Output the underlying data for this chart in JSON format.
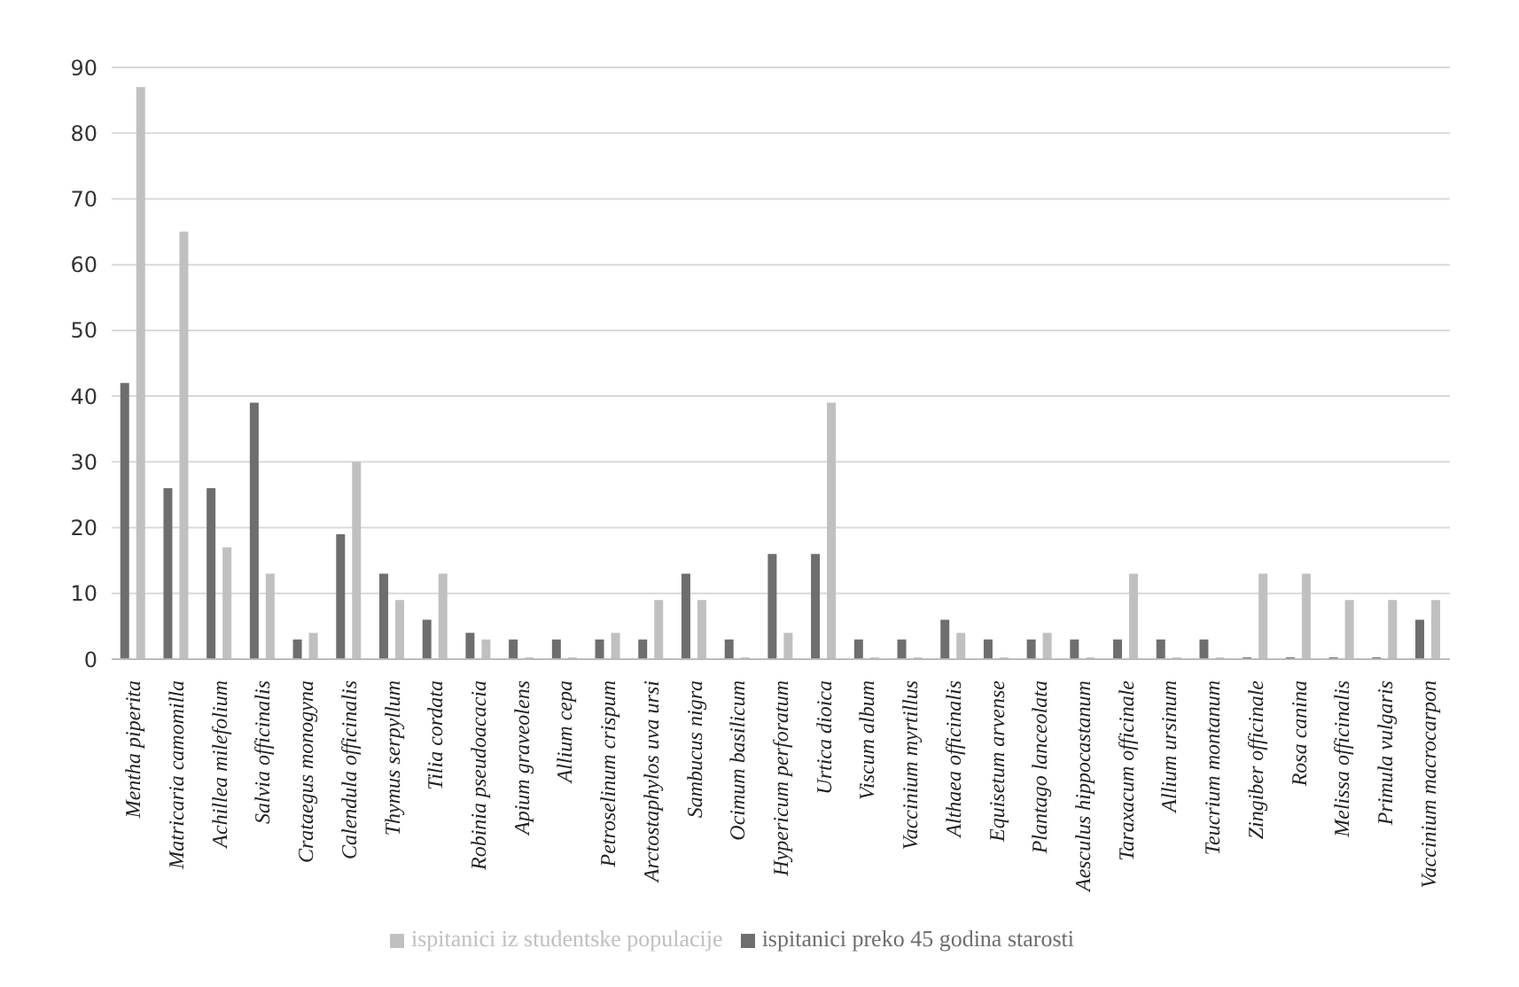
{
  "chart_data": {
    "type": "bar",
    "categories": [
      "Mentha piperita",
      "Matricaria camomilla",
      "Achillea milefolium",
      "Salvia officinalis",
      "Crataegus monogyna",
      "Calendula officinalis",
      "Thymus serpyllum",
      "Tilia cordata",
      "Robinia pseudoacacia",
      "Apium graveolens",
      "Allium cepa",
      "Petroselinum crispum",
      "Arctostaphylos uva ursi",
      "Sambucus nigra",
      "Ocimum basilicum",
      "Hypericum perforatum",
      "Urtica dioica",
      "Viscum album",
      "Vaccinium myrtillus",
      "Althaea officinalis",
      "Equisetum arvense",
      "Plantago lanceolata",
      "Aesculus hippocastanum",
      "Taraxacum officinale",
      "Allium ursinum",
      "Teucrium montanum",
      "Zingiber officinale",
      "Rosa canina",
      "Melissa officinalis",
      "Primula vulgaris",
      "Vaccinium macrocarpon"
    ],
    "series": [
      {
        "name": "ispitanici preko 45 godina starosti",
        "color": "#6e6e6e",
        "values": [
          42,
          26,
          26,
          39,
          3,
          19,
          13,
          6,
          4,
          3,
          3,
          3,
          3,
          13,
          3,
          16,
          16,
          3,
          3,
          6,
          3,
          3,
          3,
          3,
          3,
          3,
          0,
          0,
          0,
          0,
          6
        ]
      },
      {
        "name": "ispitanici iz studentske populacije",
        "color": "#c0c0c0",
        "values": [
          87,
          65,
          17,
          13,
          4,
          30,
          9,
          13,
          3,
          0,
          0,
          4,
          9,
          9,
          0,
          4,
          39,
          0,
          0,
          4,
          0,
          4,
          0,
          13,
          0,
          0,
          13,
          13,
          9,
          9,
          9
        ]
      }
    ],
    "ylim": [
      0,
      90
    ],
    "yticks": [
      0,
      10,
      20,
      30,
      40,
      50,
      60,
      70,
      80,
      90
    ],
    "grid": "y",
    "legend": "bottom"
  }
}
